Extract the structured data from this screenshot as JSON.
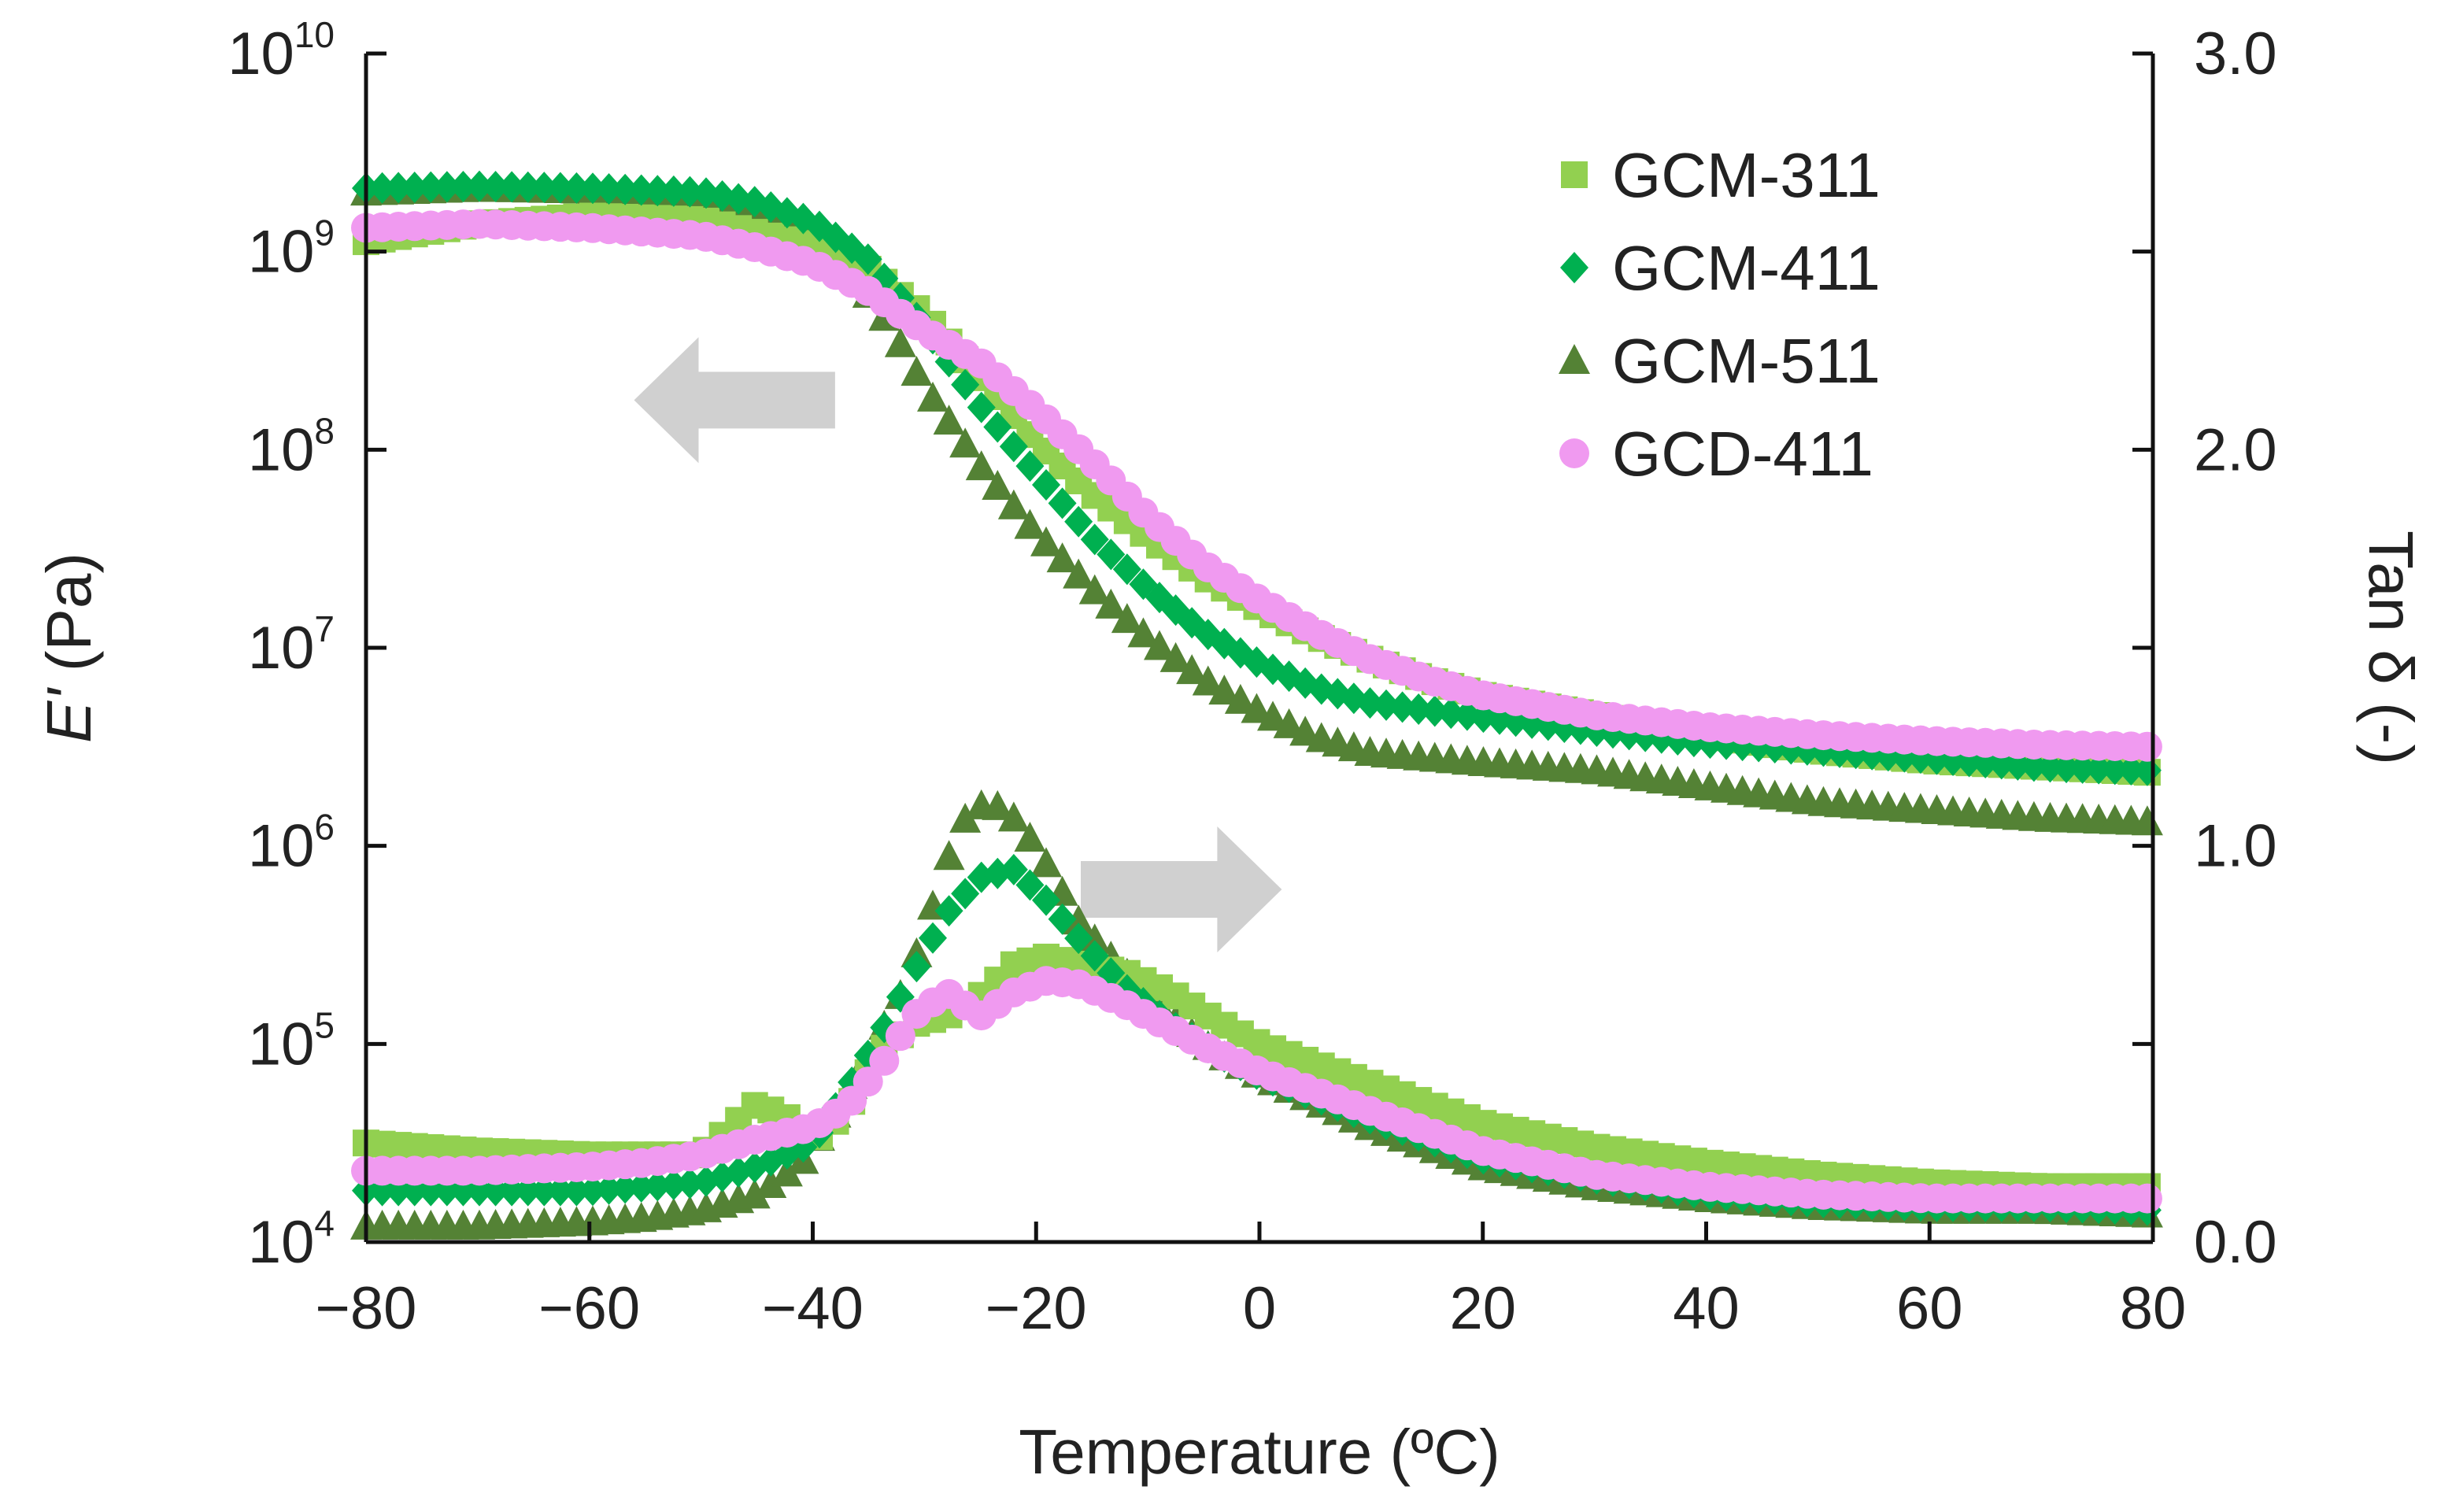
{
  "chart_data": {
    "type": "scatter",
    "xlabel": "Temperature (ºC)",
    "ylabel_left": {
      "italic": "E'",
      "rest": " (Pa)"
    },
    "ylabel_right": "Tan δ (-)",
    "xlim": [
      -80,
      80
    ],
    "ylim_left": [
      4,
      10
    ],
    "ylim_left_scale": "log10",
    "ylim_right": [
      0.0,
      3.0
    ],
    "x_ticks": [
      {
        "v": -80,
        "label": "−80"
      },
      {
        "v": -60,
        "label": "−60"
      },
      {
        "v": -40,
        "label": "−40"
      },
      {
        "v": -20,
        "label": "−20"
      },
      {
        "v": 0,
        "label": "0"
      },
      {
        "v": 20,
        "label": "20"
      },
      {
        "v": 40,
        "label": "40"
      },
      {
        "v": 60,
        "label": "60"
      },
      {
        "v": 80,
        "label": "80"
      }
    ],
    "left_ticks": [
      {
        "e": 4,
        "base": "10",
        "exp": "4"
      },
      {
        "e": 5,
        "base": "10",
        "exp": "5"
      },
      {
        "e": 6,
        "base": "10",
        "exp": "6"
      },
      {
        "e": 7,
        "base": "10",
        "exp": "7"
      },
      {
        "e": 8,
        "base": "10",
        "exp": "8"
      },
      {
        "e": 9,
        "base": "10",
        "exp": "9"
      },
      {
        "e": 10,
        "base": "10",
        "exp": "10"
      }
    ],
    "right_ticks": [
      {
        "v": 0.0,
        "label": "0.0"
      },
      {
        "v": 1.0,
        "label": "1.0"
      },
      {
        "v": 2.0,
        "label": "2.0"
      },
      {
        "v": 3.0,
        "label": "3.0"
      }
    ],
    "legend_position": "top-right",
    "arrows": [
      {
        "direction": "left",
        "x_from": -38,
        "x_to": -56,
        "y_log": 8.25,
        "meaning": "E' curves use left axis"
      },
      {
        "direction": "right",
        "x_from": -16,
        "x_to": 2,
        "y_log": 5.78,
        "meaning": "tan δ curves use right axis"
      }
    ],
    "series": [
      {
        "name": "GCM-311",
        "marker": "square",
        "color": "#92D050",
        "storage_modulus_log10": [
          [
            -80,
            9.05
          ],
          [
            -70,
            9.14
          ],
          [
            -60,
            9.18
          ],
          [
            -50,
            9.16
          ],
          [
            -40,
            9.03
          ],
          [
            -35,
            8.91
          ],
          [
            -30,
            8.68
          ],
          [
            -25,
            8.37
          ],
          [
            -20,
            8.04
          ],
          [
            -15,
            7.78
          ],
          [
            -10,
            7.56
          ],
          [
            -5,
            7.36
          ],
          [
            0,
            7.2
          ],
          [
            5,
            7.06
          ],
          [
            10,
            6.94
          ],
          [
            15,
            6.84
          ],
          [
            20,
            6.76
          ],
          [
            30,
            6.66
          ],
          [
            40,
            6.56
          ],
          [
            50,
            6.48
          ],
          [
            60,
            6.43
          ],
          [
            70,
            6.4
          ],
          [
            80,
            6.37
          ]
        ],
        "tan_delta": [
          [
            -80,
            0.25
          ],
          [
            -70,
            0.23
          ],
          [
            -60,
            0.22
          ],
          [
            -50,
            0.22
          ],
          [
            -45,
            0.35
          ],
          [
            -42,
            0.31
          ],
          [
            -40,
            0.25
          ],
          [
            -37,
            0.33
          ],
          [
            -34,
            0.48
          ],
          [
            -31,
            0.55
          ],
          [
            -28,
            0.57
          ],
          [
            -25,
            0.62
          ],
          [
            -22,
            0.7
          ],
          [
            -19,
            0.72
          ],
          [
            -16,
            0.7
          ],
          [
            -12,
            0.68
          ],
          [
            -8,
            0.63
          ],
          [
            -4,
            0.56
          ],
          [
            0,
            0.5
          ],
          [
            10,
            0.4
          ],
          [
            20,
            0.3
          ],
          [
            30,
            0.24
          ],
          [
            40,
            0.2
          ],
          [
            50,
            0.17
          ],
          [
            60,
            0.15
          ],
          [
            70,
            0.14
          ],
          [
            80,
            0.14
          ]
        ]
      },
      {
        "name": "GCM-411",
        "marker": "diamond",
        "color": "#00B050",
        "storage_modulus_log10": [
          [
            -80,
            9.32
          ],
          [
            -70,
            9.33
          ],
          [
            -60,
            9.32
          ],
          [
            -50,
            9.3
          ],
          [
            -45,
            9.25
          ],
          [
            -40,
            9.15
          ],
          [
            -35,
            8.96
          ],
          [
            -30,
            8.62
          ],
          [
            -25,
            8.22
          ],
          [
            -20,
            7.88
          ],
          [
            -15,
            7.56
          ],
          [
            -10,
            7.3
          ],
          [
            -5,
            7.08
          ],
          [
            0,
            6.92
          ],
          [
            5,
            6.8
          ],
          [
            10,
            6.72
          ],
          [
            20,
            6.65
          ],
          [
            30,
            6.58
          ],
          [
            40,
            6.52
          ],
          [
            50,
            6.48
          ],
          [
            60,
            6.44
          ],
          [
            70,
            6.4
          ],
          [
            80,
            6.38
          ]
        ],
        "tan_delta": [
          [
            -80,
            0.13
          ],
          [
            -70,
            0.13
          ],
          [
            -60,
            0.13
          ],
          [
            -55,
            0.14
          ],
          [
            -50,
            0.15
          ],
          [
            -45,
            0.19
          ],
          [
            -40,
            0.25
          ],
          [
            -37,
            0.38
          ],
          [
            -34,
            0.52
          ],
          [
            -31,
            0.68
          ],
          [
            -28,
            0.83
          ],
          [
            -25,
            0.92
          ],
          [
            -22,
            0.94
          ],
          [
            -19,
            0.86
          ],
          [
            -16,
            0.76
          ],
          [
            -12,
            0.64
          ],
          [
            -8,
            0.55
          ],
          [
            -4,
            0.48
          ],
          [
            0,
            0.42
          ],
          [
            10,
            0.31
          ],
          [
            20,
            0.21
          ],
          [
            30,
            0.16
          ],
          [
            40,
            0.12
          ],
          [
            50,
            0.1
          ],
          [
            60,
            0.09
          ],
          [
            70,
            0.09
          ],
          [
            80,
            0.08
          ]
        ]
      },
      {
        "name": "GCM-511",
        "marker": "triangle",
        "color": "#548235",
        "storage_modulus_log10": [
          [
            -80,
            9.3
          ],
          [
            -70,
            9.32
          ],
          [
            -60,
            9.31
          ],
          [
            -50,
            9.28
          ],
          [
            -45,
            9.2
          ],
          [
            -40,
            9.08
          ],
          [
            -36,
            8.86
          ],
          [
            -33,
            8.62
          ],
          [
            -30,
            8.32
          ],
          [
            -25,
            7.92
          ],
          [
            -20,
            7.58
          ],
          [
            -15,
            7.3
          ],
          [
            -10,
            7.05
          ],
          [
            -5,
            6.84
          ],
          [
            0,
            6.68
          ],
          [
            5,
            6.55
          ],
          [
            10,
            6.47
          ],
          [
            20,
            6.42
          ],
          [
            30,
            6.38
          ],
          [
            40,
            6.3
          ],
          [
            50,
            6.22
          ],
          [
            60,
            6.18
          ],
          [
            70,
            6.14
          ],
          [
            80,
            6.12
          ]
        ],
        "tan_delta": [
          [
            -80,
            0.04
          ],
          [
            -70,
            0.04
          ],
          [
            -60,
            0.05
          ],
          [
            -55,
            0.06
          ],
          [
            -50,
            0.08
          ],
          [
            -45,
            0.12
          ],
          [
            -41,
            0.2
          ],
          [
            -38,
            0.32
          ],
          [
            -35,
            0.47
          ],
          [
            -32,
            0.63
          ],
          [
            -30,
            0.78
          ],
          [
            -28,
            0.96
          ],
          [
            -26,
            1.09
          ],
          [
            -24,
            1.11
          ],
          [
            -22,
            1.07
          ],
          [
            -20,
            1.0
          ],
          [
            -18,
            0.9
          ],
          [
            -16,
            0.8
          ],
          [
            -12,
            0.68
          ],
          [
            -8,
            0.57
          ],
          [
            -4,
            0.48
          ],
          [
            0,
            0.42
          ],
          [
            10,
            0.29
          ],
          [
            20,
            0.19
          ],
          [
            30,
            0.14
          ],
          [
            40,
            0.11
          ],
          [
            50,
            0.09
          ],
          [
            60,
            0.08
          ],
          [
            70,
            0.08
          ],
          [
            80,
            0.07
          ]
        ]
      },
      {
        "name": "GCD-411",
        "marker": "circle",
        "color": "#F09AF0",
        "storage_modulus_log10": [
          [
            -80,
            9.12
          ],
          [
            -70,
            9.14
          ],
          [
            -60,
            9.12
          ],
          [
            -50,
            9.08
          ],
          [
            -45,
            9.02
          ],
          [
            -40,
            8.94
          ],
          [
            -35,
            8.8
          ],
          [
            -30,
            8.6
          ],
          [
            -25,
            8.44
          ],
          [
            -20,
            8.2
          ],
          [
            -15,
            7.94
          ],
          [
            -10,
            7.66
          ],
          [
            -5,
            7.42
          ],
          [
            0,
            7.24
          ],
          [
            5,
            7.08
          ],
          [
            10,
            6.94
          ],
          [
            15,
            6.84
          ],
          [
            20,
            6.76
          ],
          [
            30,
            6.66
          ],
          [
            40,
            6.6
          ],
          [
            50,
            6.56
          ],
          [
            60,
            6.53
          ],
          [
            70,
            6.51
          ],
          [
            80,
            6.5
          ]
        ],
        "tan_delta": [
          [
            -80,
            0.18
          ],
          [
            -70,
            0.18
          ],
          [
            -60,
            0.19
          ],
          [
            -55,
            0.2
          ],
          [
            -50,
            0.22
          ],
          [
            -45,
            0.26
          ],
          [
            -40,
            0.29
          ],
          [
            -37,
            0.34
          ],
          [
            -34,
            0.44
          ],
          [
            -31,
            0.57
          ],
          [
            -28,
            0.63
          ],
          [
            -25,
            0.57
          ],
          [
            -22,
            0.63
          ],
          [
            -19,
            0.66
          ],
          [
            -16,
            0.65
          ],
          [
            -12,
            0.6
          ],
          [
            -8,
            0.54
          ],
          [
            -4,
            0.48
          ],
          [
            0,
            0.43
          ],
          [
            10,
            0.33
          ],
          [
            20,
            0.23
          ],
          [
            30,
            0.17
          ],
          [
            40,
            0.14
          ],
          [
            50,
            0.12
          ],
          [
            60,
            0.11
          ],
          [
            70,
            0.11
          ],
          [
            80,
            0.11
          ]
        ]
      }
    ]
  }
}
